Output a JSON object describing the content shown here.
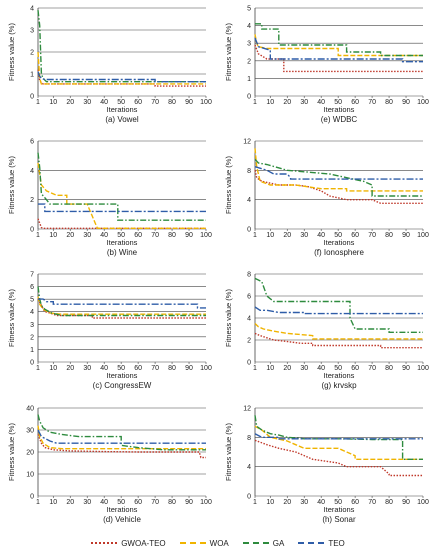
{
  "colors": {
    "GWOA-TEO": "#c0392b",
    "WOA": "#f0b400",
    "GA": "#2e8b3e",
    "TEO": "#2f5da8"
  },
  "legend": [
    "GWOA-TEO",
    "WOA",
    "GA",
    "TEO"
  ],
  "chart_data": [
    {
      "id": "vowel",
      "caption": "(a) Vowel",
      "type": "line",
      "ylabel": "Fitness value (%)",
      "xlabel": "Iterations",
      "ylim": [
        0,
        4
      ],
      "yticks": [
        0,
        1,
        2,
        3,
        4
      ],
      "xlim": [
        1,
        100
      ],
      "xticks": [
        1,
        10,
        20,
        30,
        40,
        50,
        60,
        70,
        80,
        90,
        100
      ],
      "grid": true,
      "series": [
        {
          "name": "GWOA-TEO",
          "x": [
            1,
            2,
            3,
            4,
            70,
            70,
            100
          ],
          "y": [
            1.2,
            0.7,
            0.6,
            0.55,
            0.55,
            0.45,
            0.45
          ]
        },
        {
          "name": "WOA",
          "x": [
            1,
            2,
            3,
            100
          ],
          "y": [
            2.0,
            0.8,
            0.55,
            0.55
          ]
        },
        {
          "name": "GA",
          "x": [
            1,
            2,
            3,
            4,
            6,
            100
          ],
          "y": [
            3.9,
            3.2,
            1.0,
            0.8,
            0.65,
            0.65
          ]
        },
        {
          "name": "TEO",
          "x": [
            1,
            2,
            3,
            5,
            70,
            70,
            100
          ],
          "y": [
            1.1,
            0.9,
            0.8,
            0.75,
            0.75,
            0.65,
            0.65
          ]
        }
      ]
    },
    {
      "id": "wdbc",
      "caption": "(e) WDBC",
      "type": "line",
      "ylabel": "Fitness value (%)",
      "xlabel": "Iterations",
      "ylim": [
        0,
        5
      ],
      "yticks": [
        0,
        1,
        2,
        3,
        4,
        5
      ],
      "xlim": [
        1,
        100
      ],
      "xticks": [
        1,
        10,
        20,
        30,
        40,
        50,
        60,
        70,
        80,
        90,
        100
      ],
      "grid": true,
      "series": [
        {
          "name": "GWOA-TEO",
          "x": [
            1,
            3,
            8,
            18,
            18,
            100
          ],
          "y": [
            2.9,
            2.4,
            2.1,
            2.1,
            1.4,
            1.4
          ]
        },
        {
          "name": "WOA",
          "x": [
            1,
            2,
            3,
            8,
            50,
            50,
            100
          ],
          "y": [
            3.5,
            3.0,
            2.8,
            2.7,
            2.7,
            2.3,
            2.3
          ]
        },
        {
          "name": "GA",
          "x": [
            1,
            5,
            5,
            15,
            15,
            55,
            55,
            75,
            75,
            100
          ],
          "y": [
            4.1,
            4.1,
            3.8,
            3.8,
            2.9,
            2.9,
            2.5,
            2.5,
            2.3,
            2.3
          ]
        },
        {
          "name": "TEO",
          "x": [
            1,
            3,
            10,
            10,
            88,
            88,
            100
          ],
          "y": [
            3.3,
            2.8,
            2.6,
            2.1,
            2.1,
            1.95,
            1.95
          ]
        }
      ]
    },
    {
      "id": "wine",
      "caption": "(b) Wine",
      "type": "line",
      "ylabel": "Fitness value (%)",
      "xlabel": "Iterations",
      "ylim": [
        0,
        6
      ],
      "yticks": [
        0,
        2,
        4,
        6
      ],
      "xlim": [
        1,
        100
      ],
      "xticks": [
        1,
        10,
        20,
        30,
        40,
        50,
        60,
        70,
        80,
        90,
        100
      ],
      "grid": true,
      "series": [
        {
          "name": "GWOA-TEO",
          "x": [
            1,
            2,
            3,
            4,
            100
          ],
          "y": [
            0.7,
            0.4,
            0.1,
            0.05,
            0.05
          ]
        },
        {
          "name": "WOA",
          "x": [
            1,
            3,
            6,
            12,
            18,
            18,
            30,
            36,
            36,
            100
          ],
          "y": [
            4.5,
            3.0,
            2.6,
            2.3,
            2.3,
            1.7,
            1.7,
            0.05,
            0.05,
            0.05
          ]
        },
        {
          "name": "GA",
          "x": [
            1,
            2,
            3,
            6,
            8,
            48,
            48,
            100
          ],
          "y": [
            5.2,
            4.2,
            2.4,
            2.0,
            1.7,
            1.7,
            0.6,
            0.6
          ]
        },
        {
          "name": "TEO",
          "x": [
            1,
            5,
            5,
            100
          ],
          "y": [
            1.7,
            1.7,
            1.2,
            1.2
          ]
        }
      ]
    },
    {
      "id": "ionosphere",
      "caption": "(f) Ionosphere",
      "type": "line",
      "ylabel": "Fitness value (%)",
      "xlabel": "Iterations",
      "ylim": [
        0,
        12
      ],
      "yticks": [
        0,
        4,
        8,
        12
      ],
      "xlim": [
        1,
        100
      ],
      "xticks": [
        1,
        10,
        20,
        30,
        40,
        50,
        60,
        70,
        80,
        90,
        100
      ],
      "grid": true,
      "series": [
        {
          "name": "GWOA-TEO",
          "x": [
            1,
            2,
            5,
            15,
            25,
            32,
            40,
            45,
            55,
            70,
            75,
            75,
            100
          ],
          "y": [
            8.0,
            7.0,
            6.5,
            6.0,
            6.0,
            5.8,
            5.2,
            4.5,
            4.0,
            4.0,
            3.5,
            3.5,
            3.5
          ]
        },
        {
          "name": "WOA",
          "x": [
            1,
            2,
            4,
            10,
            25,
            40,
            55,
            55,
            100
          ],
          "y": [
            11.0,
            8.5,
            6.5,
            6.0,
            6.0,
            5.5,
            5.5,
            5.2,
            5.2
          ]
        },
        {
          "name": "GA",
          "x": [
            1,
            3,
            8,
            20,
            30,
            45,
            55,
            65,
            70,
            70,
            100
          ],
          "y": [
            9.5,
            9.0,
            8.8,
            8.0,
            7.8,
            7.5,
            7.0,
            6.5,
            6.0,
            4.5,
            4.5
          ]
        },
        {
          "name": "TEO",
          "x": [
            1,
            8,
            12,
            20,
            22,
            22,
            100
          ],
          "y": [
            8.5,
            8.0,
            7.5,
            7.5,
            7.0,
            6.8,
            6.8
          ]
        }
      ]
    },
    {
      "id": "congressew",
      "caption": "(c) CongressEW",
      "type": "line",
      "ylabel": "Fitness value (%)",
      "xlabel": "Iterations",
      "ylim": [
        0,
        7
      ],
      "yticks": [
        0,
        1,
        2,
        3,
        4,
        5,
        6,
        7
      ],
      "xlim": [
        1,
        100
      ],
      "xticks": [
        1,
        10,
        20,
        30,
        40,
        50,
        60,
        70,
        80,
        90,
        100
      ],
      "grid": true,
      "series": [
        {
          "name": "GWOA-TEO",
          "x": [
            1,
            3,
            5,
            8,
            12,
            33,
            33,
            100
          ],
          "y": [
            5.0,
            4.5,
            4.0,
            3.9,
            3.7,
            3.7,
            3.5,
            3.5
          ]
        },
        {
          "name": "WOA",
          "x": [
            1,
            2,
            4,
            8,
            15,
            100
          ],
          "y": [
            5.2,
            4.6,
            4.2,
            3.9,
            3.8,
            3.8
          ]
        },
        {
          "name": "GA",
          "x": [
            1,
            2,
            3,
            5,
            9,
            15,
            100
          ],
          "y": [
            6.0,
            5.0,
            4.5,
            4.2,
            3.9,
            3.7,
            3.7
          ]
        },
        {
          "name": "TEO",
          "x": [
            1,
            4,
            6,
            10,
            10,
            95,
            95,
            100
          ],
          "y": [
            5.0,
            5.0,
            4.8,
            4.8,
            4.6,
            4.6,
            4.3,
            4.3
          ]
        }
      ]
    },
    {
      "id": "krvskp",
      "caption": "(g) krvskp",
      "type": "line",
      "ylabel": "Fitness value (%)",
      "xlabel": "Iterations",
      "ylim": [
        0,
        8
      ],
      "yticks": [
        0,
        2,
        4,
        6,
        8
      ],
      "xlim": [
        1,
        100
      ],
      "xticks": [
        1,
        10,
        20,
        30,
        40,
        50,
        60,
        70,
        80,
        90,
        100
      ],
      "grid": true,
      "series": [
        {
          "name": "GWOA-TEO",
          "x": [
            1,
            4,
            8,
            12,
            18,
            28,
            35,
            35,
            75,
            75,
            100
          ],
          "y": [
            2.6,
            2.4,
            2.2,
            2.0,
            1.9,
            1.7,
            1.7,
            1.5,
            1.5,
            1.3,
            1.3
          ]
        },
        {
          "name": "WOA",
          "x": [
            1,
            3,
            6,
            12,
            20,
            35,
            35,
            100
          ],
          "y": [
            3.5,
            3.2,
            3.0,
            2.8,
            2.6,
            2.4,
            2.1,
            2.1
          ]
        },
        {
          "name": "GA",
          "x": [
            1,
            5,
            8,
            12,
            57,
            57,
            60,
            80,
            80,
            100
          ],
          "y": [
            7.6,
            7.3,
            6.0,
            5.5,
            5.5,
            4.0,
            3.0,
            3.0,
            2.7,
            2.7
          ]
        },
        {
          "name": "TEO",
          "x": [
            1,
            4,
            8,
            15,
            30,
            30,
            100
          ],
          "y": [
            5.0,
            4.7,
            4.7,
            4.5,
            4.5,
            4.4,
            4.4
          ]
        }
      ]
    },
    {
      "id": "vehicle",
      "caption": "(d) Vehicle",
      "type": "line",
      "ylabel": "Fitness value (%)",
      "xlabel": "Iterations",
      "ylim": [
        0,
        40
      ],
      "yticks": [
        0,
        10,
        20,
        30,
        40
      ],
      "xlim": [
        1,
        100
      ],
      "xticks": [
        1,
        10,
        20,
        30,
        40,
        50,
        60,
        70,
        80,
        90,
        100
      ],
      "grid": true,
      "series": [
        {
          "name": "GWOA-TEO",
          "x": [
            1,
            3,
            5,
            10,
            20,
            40,
            60,
            96,
            97,
            100
          ],
          "y": [
            28,
            24,
            22,
            21,
            20.5,
            20.2,
            20,
            20,
            17.5,
            17.5
          ]
        },
        {
          "name": "WOA",
          "x": [
            1,
            2,
            4,
            8,
            15,
            100
          ],
          "y": [
            32,
            27,
            24,
            22,
            21.5,
            21.5
          ]
        },
        {
          "name": "GA",
          "x": [
            1,
            2,
            4,
            8,
            15,
            25,
            50,
            50,
            60,
            75,
            100
          ],
          "y": [
            37,
            34,
            31,
            29,
            28,
            27,
            27,
            23,
            22,
            21,
            21
          ]
        },
        {
          "name": "TEO",
          "x": [
            1,
            3,
            8,
            12,
            100
          ],
          "y": [
            30,
            27,
            25,
            24,
            24
          ]
        }
      ]
    },
    {
      "id": "sonar",
      "caption": "(h) Sonar",
      "type": "line",
      "ylabel": "Fitness value (%)",
      "xlabel": "Iterations",
      "ylim": [
        0,
        12
      ],
      "yticks": [
        0,
        4,
        8,
        12
      ],
      "xlim": [
        1,
        100
      ],
      "xticks": [
        1,
        10,
        20,
        30,
        40,
        50,
        60,
        70,
        80,
        90,
        100
      ],
      "grid": true,
      "series": [
        {
          "name": "GWOA-TEO",
          "x": [
            1,
            8,
            15,
            25,
            35,
            50,
            55,
            55,
            75,
            80,
            80,
            100
          ],
          "y": [
            7.6,
            7.0,
            6.5,
            6.0,
            5.0,
            4.5,
            4.0,
            4.0,
            4.0,
            3.0,
            2.8,
            2.8
          ]
        },
        {
          "name": "WOA",
          "x": [
            1,
            5,
            10,
            20,
            25,
            30,
            50,
            60,
            60,
            100
          ],
          "y": [
            9.5,
            9.0,
            8.0,
            7.5,
            7.0,
            6.5,
            6.5,
            5.5,
            5.0,
            5.0
          ]
        },
        {
          "name": "GA",
          "x": [
            1,
            2,
            5,
            10,
            15,
            20,
            30,
            50,
            70,
            88,
            88,
            100
          ],
          "y": [
            11.0,
            9.5,
            9.0,
            8.5,
            8.3,
            8.0,
            7.8,
            7.8,
            7.7,
            7.7,
            5.0,
            5.0
          ]
        },
        {
          "name": "TEO",
          "x": [
            1,
            5,
            15,
            15,
            100
          ],
          "y": [
            8.5,
            8.0,
            8.0,
            7.8,
            7.8
          ]
        }
      ]
    }
  ]
}
